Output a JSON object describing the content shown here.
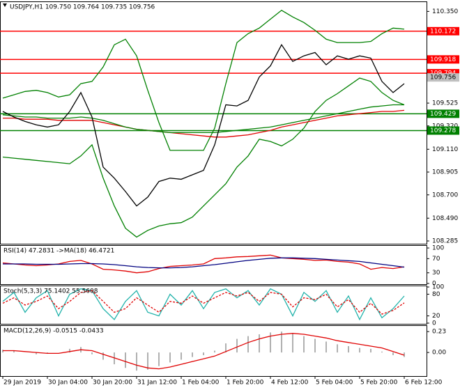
{
  "chart_data": [
    {
      "type": "line",
      "title": "USDJPY,H1  109.750 109.764 109.735 109.756",
      "xlim": [
        0,
        153
      ],
      "ylim": [
        108.26,
        110.44
      ],
      "yticks": [
        {
          "value": 110.35,
          "label": "110.350"
        },
        109.525,
        {
          "value": 109.32,
          "label": "109.320"
        },
        {
          "value": 109.11,
          "label": "109.110"
        },
        108.905,
        {
          "value": 108.7,
          "label": "108.700"
        },
        {
          "value": 108.49,
          "label": "108.490"
        },
        108.285
      ],
      "x": [
        1,
        5,
        9,
        13,
        17,
        21,
        25,
        29,
        33,
        37,
        41,
        45,
        49,
        53,
        57,
        61,
        65,
        69,
        73,
        77,
        81,
        85,
        89,
        93,
        97,
        101,
        105,
        109,
        113,
        117,
        121,
        125,
        129,
        133,
        137,
        141,
        145
      ],
      "series": [
        {
          "name": "Upper band",
          "color": "#008000",
          "values": [
            109.57,
            109.6,
            109.63,
            109.64,
            109.62,
            109.58,
            109.6,
            109.7,
            109.72,
            109.85,
            110.05,
            110.1,
            109.95,
            109.64,
            109.35,
            109.1,
            109.1,
            109.1,
            109.1,
            109.3,
            109.7,
            110.07,
            110.15,
            110.2,
            110.28,
            110.36,
            110.3,
            110.25,
            110.18,
            110.1,
            110.07,
            110.07,
            110.07,
            110.08,
            110.15,
            110.2,
            110.19
          ]
        },
        {
          "name": "Lower band",
          "color": "#008000",
          "values": [
            109.04,
            109.03,
            109.02,
            109.01,
            109.0,
            108.99,
            108.98,
            109.05,
            109.15,
            108.85,
            108.6,
            108.4,
            108.32,
            108.38,
            108.42,
            108.44,
            108.45,
            108.5,
            108.6,
            108.7,
            108.8,
            108.95,
            109.05,
            109.2,
            109.18,
            109.14,
            109.2,
            109.3,
            109.45,
            109.55,
            109.61,
            109.68,
            109.75,
            109.72,
            109.62,
            109.55,
            109.51
          ]
        },
        {
          "name": "Slow MA",
          "color": "#e00000",
          "values": [
            109.39,
            109.39,
            109.38,
            109.38,
            109.38,
            109.37,
            109.37,
            109.37,
            109.37,
            109.35,
            109.33,
            109.31,
            109.29,
            109.28,
            109.27,
            109.26,
            109.25,
            109.24,
            109.23,
            109.22,
            109.22,
            109.23,
            109.24,
            109.26,
            109.28,
            109.31,
            109.33,
            109.35,
            109.37,
            109.39,
            109.41,
            109.42,
            109.43,
            109.44,
            109.45,
            109.45,
            109.46
          ]
        },
        {
          "name": "Trend MA",
          "color": "#008000",
          "values": [
            109.42,
            109.41,
            109.4,
            109.4,
            109.39,
            109.39,
            109.39,
            109.4,
            109.39,
            109.37,
            109.34,
            109.31,
            109.29,
            109.28,
            109.27,
            109.26,
            109.26,
            109.26,
            109.26,
            109.26,
            109.27,
            109.28,
            109.29,
            109.3,
            109.31,
            109.33,
            109.35,
            109.37,
            109.39,
            109.41,
            109.43,
            109.45,
            109.47,
            109.49,
            109.5,
            109.51,
            109.51
          ]
        },
        {
          "name": "Close",
          "color": "#000000",
          "values": [
            109.45,
            109.4,
            109.36,
            109.33,
            109.31,
            109.33,
            109.45,
            109.62,
            109.4,
            108.95,
            108.85,
            108.73,
            108.6,
            108.68,
            108.82,
            108.85,
            108.84,
            108.88,
            108.92,
            109.15,
            109.51,
            109.5,
            109.55,
            109.76,
            109.86,
            110.05,
            109.9,
            109.95,
            109.98,
            109.87,
            109.95,
            109.92,
            109.95,
            109.93,
            109.72,
            109.62,
            109.7
          ]
        }
      ],
      "levels": [
        {
          "value": 110.172,
          "color": "#ff0000"
        },
        {
          "value": 109.918,
          "color": "#ff0000"
        },
        {
          "value": 109.794,
          "color": "#ff0000"
        },
        {
          "value": 109.429,
          "color": "#008000"
        },
        {
          "value": 109.278,
          "color": "#008000"
        }
      ],
      "last_price": {
        "value": 109.756,
        "color": "#c0c0c0"
      }
    },
    {
      "type": "line",
      "title": "RSI(14) 47.2831 ->MA(18) 46.4721",
      "xlim": [
        0,
        153
      ],
      "ylim": [
        -2,
        108
      ],
      "yticks": [
        100,
        70,
        30,
        0
      ],
      "x": [
        1,
        5,
        9,
        13,
        17,
        21,
        25,
        29,
        33,
        37,
        41,
        45,
        49,
        53,
        57,
        61,
        65,
        69,
        73,
        77,
        81,
        85,
        89,
        93,
        97,
        101,
        105,
        109,
        113,
        117,
        121,
        125,
        129,
        133,
        137,
        141,
        145
      ],
      "series": [
        {
          "name": "RSI",
          "color": "#e00000",
          "values": [
            58,
            55,
            52,
            50,
            52,
            55,
            62,
            65,
            55,
            40,
            38,
            35,
            30,
            33,
            42,
            48,
            50,
            52,
            55,
            70,
            72,
            75,
            76,
            78,
            80,
            72,
            70,
            68,
            65,
            66,
            62,
            60,
            55,
            40,
            45,
            42,
            47
          ]
        },
        {
          "name": "MA",
          "color": "#000080",
          "values": [
            55,
            55,
            55,
            54,
            54,
            54,
            55,
            56,
            56,
            55,
            53,
            50,
            47,
            45,
            44,
            44,
            45,
            47,
            50,
            53,
            57,
            61,
            65,
            68,
            71,
            72,
            72,
            71,
            70,
            68,
            66,
            64,
            62,
            58,
            54,
            50,
            46
          ]
        }
      ]
    },
    {
      "type": "line",
      "title": "Stoch(5,3,3) 75.1402 55.5608",
      "xlim": [
        0,
        153
      ],
      "ylim": [
        -2,
        104
      ],
      "yticks": [
        100,
        80,
        20,
        0
      ],
      "x": [
        1,
        5,
        9,
        13,
        17,
        21,
        25,
        29,
        33,
        37,
        41,
        45,
        49,
        53,
        57,
        61,
        65,
        69,
        73,
        77,
        81,
        85,
        89,
        93,
        97,
        101,
        105,
        109,
        113,
        117,
        121,
        125,
        129,
        133,
        137,
        141,
        145
      ],
      "series": [
        {
          "name": "Main",
          "color": "#20b2aa",
          "values": [
            60,
            85,
            30,
            70,
            90,
            20,
            80,
            95,
            90,
            40,
            10,
            60,
            90,
            30,
            20,
            80,
            50,
            90,
            40,
            85,
            95,
            70,
            90,
            50,
            95,
            80,
            20,
            85,
            60,
            90,
            30,
            75,
            10,
            70,
            15,
            40,
            75
          ]
        },
        {
          "name": "Signal",
          "color": "#e00000",
          "dashed": true,
          "values": [
            55,
            70,
            50,
            60,
            75,
            40,
            60,
            85,
            90,
            60,
            30,
            40,
            70,
            50,
            30,
            60,
            55,
            75,
            55,
            70,
            85,
            75,
            85,
            60,
            85,
            80,
            45,
            70,
            65,
            80,
            45,
            65,
            30,
            55,
            25,
            35,
            56
          ]
        }
      ]
    },
    {
      "type": "bar",
      "title": "MACD(12,26,9) -0.0515 -0.0433",
      "xlim": [
        0,
        153
      ],
      "ylim": [
        -0.26,
        0.3
      ],
      "yticks": [
        0.23,
        {
          "value": 0,
          "label": "0.00"
        }
      ],
      "x": [
        1,
        5,
        9,
        13,
        17,
        21,
        25,
        29,
        33,
        37,
        41,
        45,
        49,
        53,
        57,
        61,
        65,
        69,
        73,
        77,
        81,
        85,
        89,
        93,
        97,
        101,
        105,
        109,
        113,
        117,
        121,
        125,
        129,
        133,
        137,
        141,
        145
      ],
      "xticks": [
        {
          "value": 1,
          "label": "29 Jan 2019"
        },
        {
          "value": 17,
          "label": "30 Jan 04:00"
        },
        {
          "value": 33,
          "label": "30 Jan 20:00"
        },
        {
          "value": 49,
          "label": "31 Jan 12:00"
        },
        {
          "value": 65,
          "label": "1 Feb 04:00"
        },
        {
          "value": 81,
          "label": "1 Feb 20:00"
        },
        {
          "value": 97,
          "label": "4 Feb 12:00"
        },
        {
          "value": 113,
          "label": "5 Feb 04:00"
        },
        {
          "value": 129,
          "label": "5 Feb 20:00"
        },
        {
          "value": 145,
          "label": "6 Feb 12:00"
        }
      ],
      "series": [
        {
          "name": "Histogram",
          "type": "bar",
          "color": "#b0b0b0",
          "values": [
            0.03,
            0.02,
            0.0,
            -0.02,
            -0.01,
            0.0,
            0.04,
            0.06,
            -0.02,
            -0.08,
            -0.13,
            -0.17,
            -0.2,
            -0.19,
            -0.15,
            -0.11,
            -0.08,
            -0.05,
            -0.03,
            0.02,
            0.1,
            0.15,
            0.18,
            0.2,
            0.22,
            0.23,
            0.21,
            0.18,
            0.15,
            0.12,
            0.09,
            0.07,
            0.05,
            0.04,
            0.01,
            -0.03,
            -0.05
          ]
        },
        {
          "name": "Signal",
          "type": "line",
          "color": "#e00000",
          "values": [
            0.02,
            0.02,
            0.01,
            0,
            -0.01,
            -0.01,
            0.01,
            0.03,
            0.02,
            -0.02,
            -0.06,
            -0.1,
            -0.14,
            -0.17,
            -0.18,
            -0.16,
            -0.13,
            -0.1,
            -0.07,
            -0.04,
            0.01,
            0.06,
            0.11,
            0.15,
            0.18,
            0.2,
            0.21,
            0.2,
            0.18,
            0.16,
            0.13,
            0.11,
            0.09,
            0.07,
            0.05,
            0.01,
            -0.03
          ]
        }
      ]
    }
  ]
}
